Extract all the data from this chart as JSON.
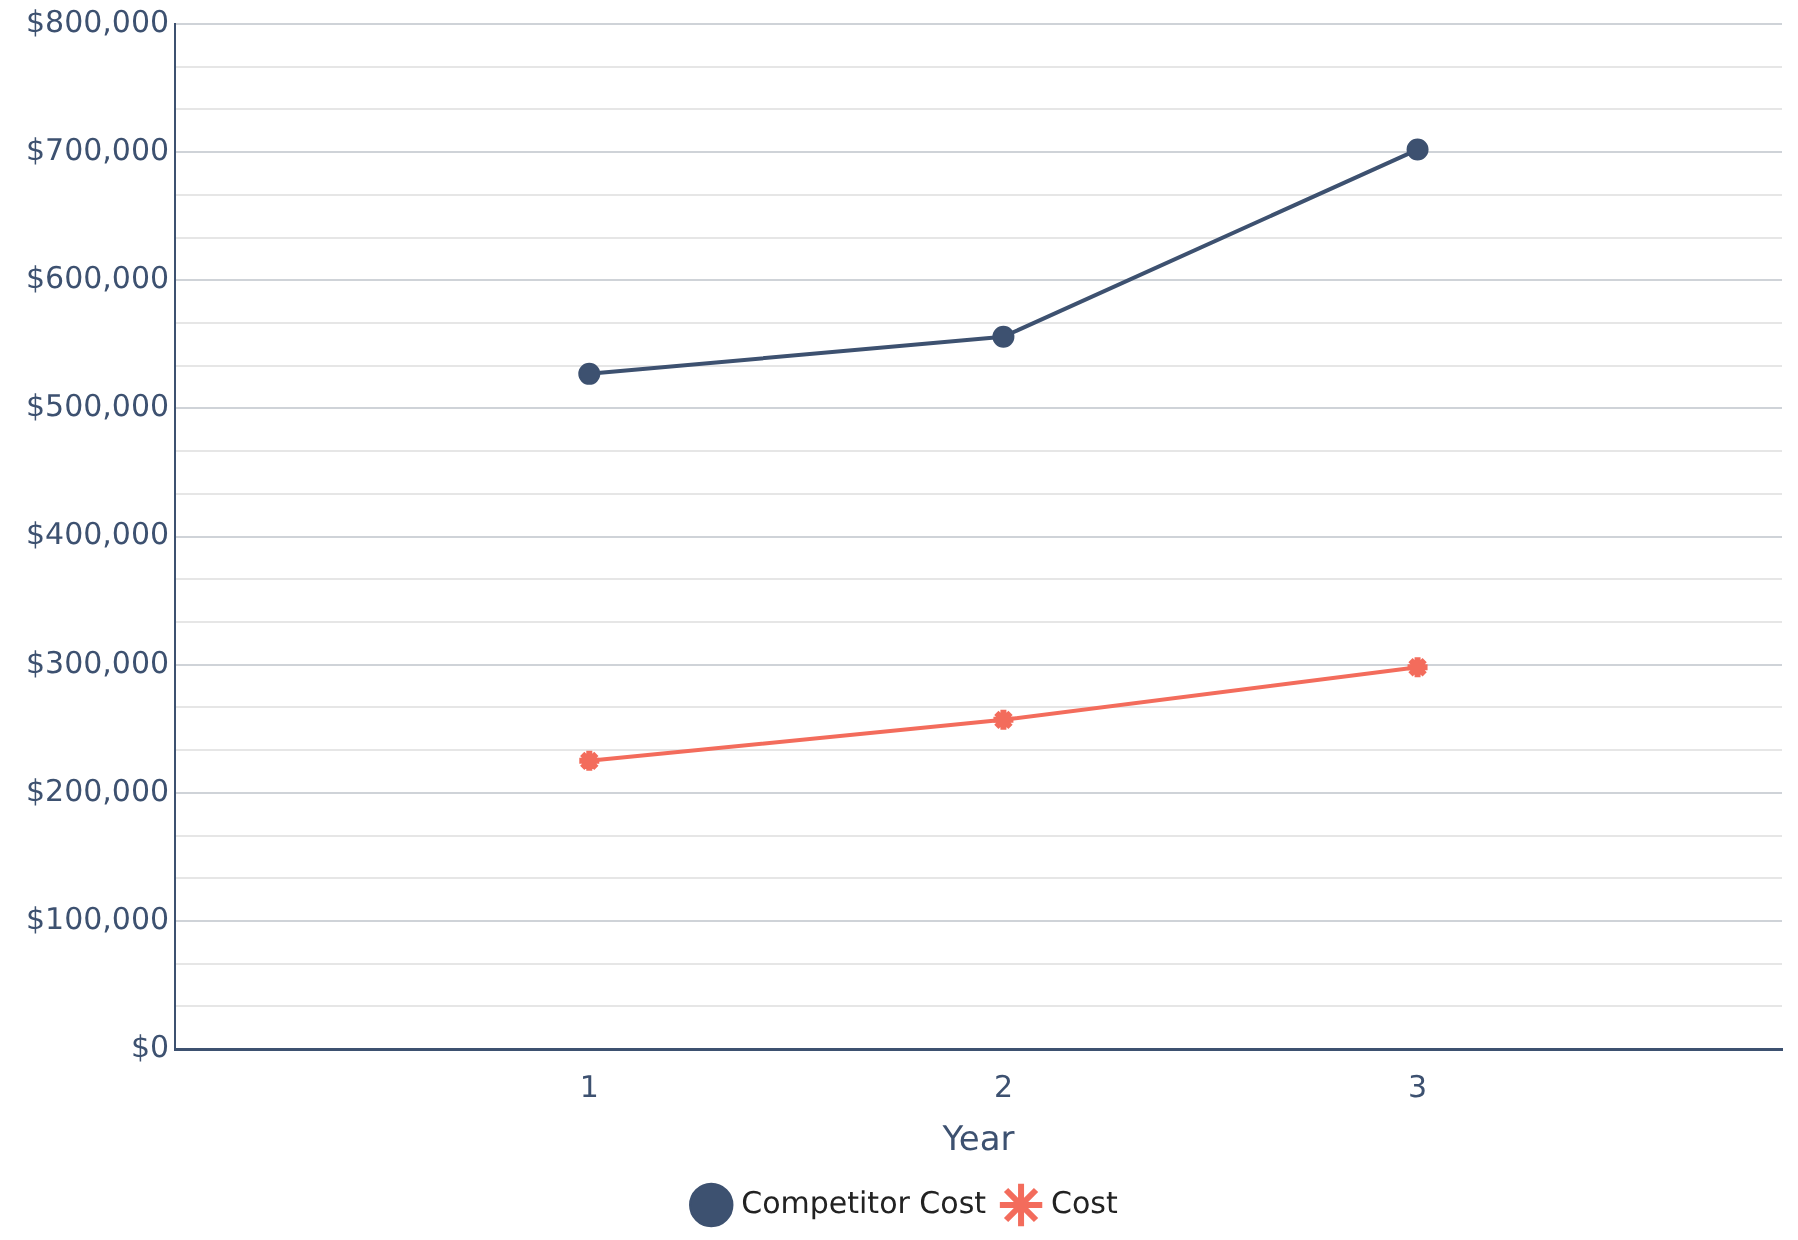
{
  "chart_data": {
    "type": "line",
    "xlabel": "Year",
    "x": [
      1,
      2,
      3
    ],
    "xlim": [
      0,
      3.88
    ],
    "xticks": [
      1,
      2,
      3
    ],
    "ylim": [
      0,
      800000
    ],
    "yticks": [
      {
        "value": 0,
        "label": "$0"
      },
      {
        "value": 33333,
        "label": null
      },
      {
        "value": 66667,
        "label": null
      },
      {
        "value": 100000,
        "label": "$100,000"
      },
      {
        "value": 133333,
        "label": null
      },
      {
        "value": 166667,
        "label": null
      },
      {
        "value": 200000,
        "label": "$200,000"
      },
      {
        "value": 233333,
        "label": null
      },
      {
        "value": 266667,
        "label": null
      },
      {
        "value": 300000,
        "label": "$300,000"
      },
      {
        "value": 333333,
        "label": null
      },
      {
        "value": 366667,
        "label": null
      },
      {
        "value": 400000,
        "label": "$400,000"
      },
      {
        "value": 433333,
        "label": null
      },
      {
        "value": 466667,
        "label": null
      },
      {
        "value": 500000,
        "label": "$500,000"
      },
      {
        "value": 533333,
        "label": null
      },
      {
        "value": 566667,
        "label": null
      },
      {
        "value": 600000,
        "label": "$600,000"
      },
      {
        "value": 633333,
        "label": null
      },
      {
        "value": 666667,
        "label": null
      },
      {
        "value": 700000,
        "label": "$700,000"
      },
      {
        "value": 733333,
        "label": null
      },
      {
        "value": 766667,
        "label": null
      },
      {
        "value": 800000,
        "label": "$800,000"
      }
    ],
    "grid": "y",
    "legend": "bottom",
    "series": [
      {
        "name": "Competitor Cost",
        "color": "#3d5170",
        "marker": "circle",
        "values": [
          527000,
          556000,
          702000
        ]
      },
      {
        "name": "Cost",
        "color": "#f36c5c",
        "marker": "cross",
        "values": [
          225000,
          257000,
          298000
        ]
      }
    ]
  }
}
